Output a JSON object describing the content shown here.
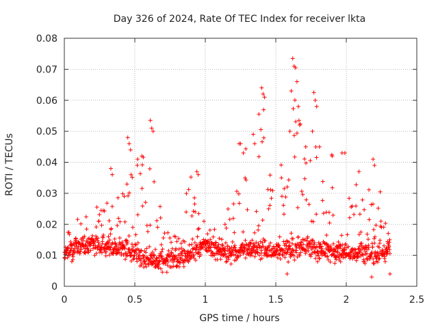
{
  "chart_data": {
    "type": "scatter",
    "title": "Day 326 of 2024, Rate Of TEC Index for receiver lkta",
    "xlabel": "GPS time / hours",
    "ylabel": "ROTI / TECUs",
    "xlim": [
      0,
      2.5
    ],
    "ylim": [
      0,
      0.08
    ],
    "xticks": [
      0,
      0.5,
      1,
      1.5,
      2,
      2.5
    ],
    "xtick_labels": [
      "0",
      "0.5",
      "1",
      "1.5",
      "2",
      "2.5"
    ],
    "yticks": [
      0,
      0.01,
      0.02,
      0.03,
      0.04,
      0.05,
      0.06,
      0.07,
      0.08
    ],
    "ytick_labels": [
      "0",
      "0.01",
      "0.02",
      "0.03",
      "0.04",
      "0.05",
      "0.06",
      "0.07",
      "0.08"
    ],
    "grid": true,
    "marker": "+",
    "color": "#ff0000",
    "series": [
      {
        "name": "ROTI",
        "baseline": [
          [
            0.0,
            0.011
          ],
          [
            0.1,
            0.013
          ],
          [
            0.2,
            0.014
          ],
          [
            0.3,
            0.013
          ],
          [
            0.4,
            0.012
          ],
          [
            0.5,
            0.011
          ],
          [
            0.6,
            0.009
          ],
          [
            0.7,
            0.008
          ],
          [
            0.8,
            0.009
          ],
          [
            0.9,
            0.011
          ],
          [
            1.0,
            0.013
          ],
          [
            1.1,
            0.011
          ],
          [
            1.2,
            0.011
          ],
          [
            1.3,
            0.012
          ],
          [
            1.4,
            0.012
          ],
          [
            1.5,
            0.011
          ],
          [
            1.6,
            0.012
          ],
          [
            1.7,
            0.013
          ],
          [
            1.8,
            0.012
          ],
          [
            1.9,
            0.011
          ],
          [
            2.0,
            0.011
          ],
          [
            2.1,
            0.011
          ],
          [
            2.2,
            0.01
          ],
          [
            2.31,
            0.012
          ]
        ],
        "envelope": [
          [
            0.0,
            0.018
          ],
          [
            0.1,
            0.024
          ],
          [
            0.2,
            0.022
          ],
          [
            0.3,
            0.035
          ],
          [
            0.4,
            0.028
          ],
          [
            0.45,
            0.047
          ],
          [
            0.55,
            0.042
          ],
          [
            0.62,
            0.053
          ],
          [
            0.7,
            0.022
          ],
          [
            0.8,
            0.02
          ],
          [
            0.9,
            0.037
          ],
          [
            1.0,
            0.022
          ],
          [
            1.1,
            0.018
          ],
          [
            1.2,
            0.04
          ],
          [
            1.28,
            0.046
          ],
          [
            1.35,
            0.035
          ],
          [
            1.41,
            0.063
          ],
          [
            1.5,
            0.035
          ],
          [
            1.58,
            0.045
          ],
          [
            1.64,
            0.073
          ],
          [
            1.7,
            0.05
          ],
          [
            1.78,
            0.062
          ],
          [
            1.85,
            0.045
          ],
          [
            1.95,
            0.043
          ],
          [
            2.05,
            0.035
          ],
          [
            2.15,
            0.03
          ],
          [
            2.2,
            0.041
          ],
          [
            2.31,
            0.022
          ]
        ],
        "highlights": [
          [
            0.45,
            0.048
          ],
          [
            0.46,
            0.046
          ],
          [
            0.47,
            0.044
          ],
          [
            0.52,
            0.041
          ],
          [
            0.55,
            0.042
          ],
          [
            0.61,
            0.0535
          ],
          [
            0.62,
            0.051
          ],
          [
            0.63,
            0.05
          ],
          [
            0.33,
            0.038
          ],
          [
            0.34,
            0.036
          ],
          [
            0.94,
            0.037
          ],
          [
            0.95,
            0.036
          ],
          [
            1.24,
            0.046
          ],
          [
            1.25,
            0.046
          ],
          [
            1.27,
            0.043
          ],
          [
            1.34,
            0.049
          ],
          [
            1.35,
            0.046
          ],
          [
            1.38,
            0.0555
          ],
          [
            1.4,
            0.064
          ],
          [
            1.41,
            0.062
          ],
          [
            1.42,
            0.061
          ],
          [
            1.61,
            0.063
          ],
          [
            1.62,
            0.0735
          ],
          [
            1.63,
            0.071
          ],
          [
            1.64,
            0.0705
          ],
          [
            1.65,
            0.066
          ],
          [
            1.66,
            0.058
          ],
          [
            1.67,
            0.052
          ],
          [
            1.6,
            0.05
          ],
          [
            1.77,
            0.0625
          ],
          [
            1.78,
            0.06
          ],
          [
            1.79,
            0.058
          ],
          [
            1.76,
            0.05
          ],
          [
            1.81,
            0.045
          ],
          [
            1.9,
            0.042
          ],
          [
            1.97,
            0.043
          ],
          [
            1.99,
            0.043
          ],
          [
            2.19,
            0.041
          ],
          [
            2.2,
            0.039
          ],
          [
            2.09,
            0.037
          ],
          [
            2.31,
            0.004
          ],
          [
            2.18,
            0.003
          ],
          [
            1.58,
            0.004
          ]
        ],
        "count": 1300
      }
    ]
  }
}
